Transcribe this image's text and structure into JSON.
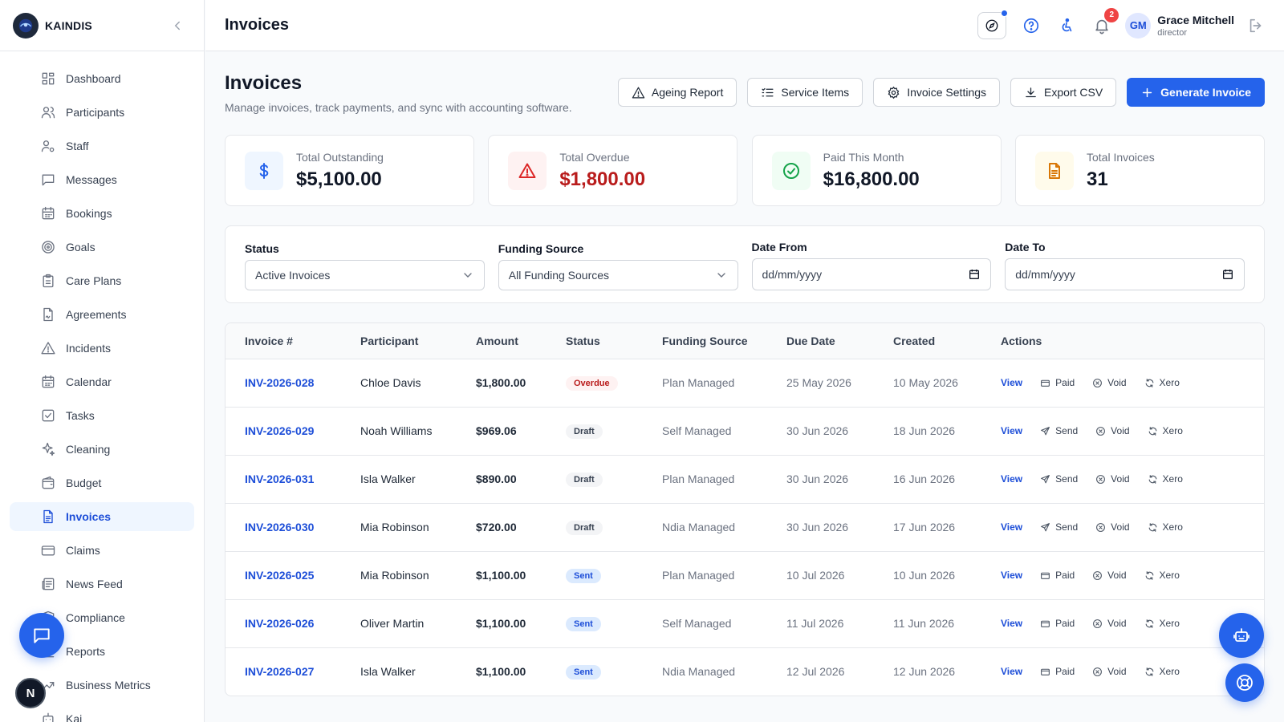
{
  "app": {
    "name": "KAINDIS"
  },
  "header": {
    "title": "Invoices",
    "notification_count": "2",
    "user": {
      "initials": "GM",
      "name": "Grace Mitchell",
      "role": "director"
    }
  },
  "sidebar": {
    "items": [
      {
        "label": "Dashboard",
        "icon": "grid-icon"
      },
      {
        "label": "Participants",
        "icon": "users-icon"
      },
      {
        "label": "Staff",
        "icon": "staff-icon"
      },
      {
        "label": "Messages",
        "icon": "message-icon"
      },
      {
        "label": "Bookings",
        "icon": "calendar-icon"
      },
      {
        "label": "Goals",
        "icon": "target-icon"
      },
      {
        "label": "Care Plans",
        "icon": "clipboard-icon"
      },
      {
        "label": "Agreements",
        "icon": "file-signature-icon"
      },
      {
        "label": "Incidents",
        "icon": "warning-icon"
      },
      {
        "label": "Calendar",
        "icon": "calendar-icon"
      },
      {
        "label": "Tasks",
        "icon": "checkbox-icon"
      },
      {
        "label": "Cleaning",
        "icon": "sparkles-icon"
      },
      {
        "label": "Budget",
        "icon": "wallet-icon"
      },
      {
        "label": "Invoices",
        "icon": "invoice-icon",
        "active": true
      },
      {
        "label": "Claims",
        "icon": "card-icon"
      },
      {
        "label": "News Feed",
        "icon": "newspaper-icon"
      },
      {
        "label": "Compliance",
        "icon": "shield-icon"
      },
      {
        "label": "Reports",
        "icon": "chart-icon"
      },
      {
        "label": "Business Metrics",
        "icon": "trending-icon"
      },
      {
        "label": "Kai",
        "icon": "bot-icon"
      }
    ],
    "n_badge": "N"
  },
  "page": {
    "title": "Invoices",
    "subtitle": "Manage invoices, track payments, and sync with accounting software.",
    "buttons": {
      "ageing": "Ageing Report",
      "service_items": "Service Items",
      "settings": "Invoice Settings",
      "export": "Export CSV",
      "generate": "Generate Invoice"
    }
  },
  "stats": [
    {
      "label": "Total Outstanding",
      "value": "$5,100.00",
      "color": "#2563eb",
      "bg": "#eff6ff"
    },
    {
      "label": "Total Overdue",
      "value": "$1,800.00",
      "color": "#dc2626",
      "bg": "#fef2f2"
    },
    {
      "label": "Paid This Month",
      "value": "$16,800.00",
      "color": "#16a34a",
      "bg": "#f0fdf4"
    },
    {
      "label": "Total Invoices",
      "value": "31",
      "color": "#d97706",
      "bg": "#fffbeb"
    }
  ],
  "filters": {
    "status": {
      "label": "Status",
      "value": "Active Invoices"
    },
    "funding": {
      "label": "Funding Source",
      "value": "All Funding Sources"
    },
    "date_from": {
      "label": "Date From",
      "value": "dd/mm/yyyy"
    },
    "date_to": {
      "label": "Date To",
      "value": "dd/mm/yyyy"
    }
  },
  "table": {
    "columns": [
      "Invoice #",
      "Participant",
      "Amount",
      "Status",
      "Funding Source",
      "Due Date",
      "Created",
      "Actions"
    ],
    "action_labels": {
      "view": "View",
      "paid": "Paid",
      "send": "Send",
      "void": "Void",
      "xero": "Xero"
    },
    "rows": [
      {
        "invoice": "INV-2026-028",
        "participant": "Chloe Davis",
        "amount": "$1,800.00",
        "status": "Overdue",
        "funding": "Plan Managed",
        "due": "25 May 2026",
        "created": "10 May 2026",
        "action": "Paid"
      },
      {
        "invoice": "INV-2026-029",
        "participant": "Noah Williams",
        "amount": "$969.06",
        "status": "Draft",
        "funding": "Self Managed",
        "due": "30 Jun 2026",
        "created": "18 Jun 2026",
        "action": "Send"
      },
      {
        "invoice": "INV-2026-031",
        "participant": "Isla Walker",
        "amount": "$890.00",
        "status": "Draft",
        "funding": "Plan Managed",
        "due": "30 Jun 2026",
        "created": "16 Jun 2026",
        "action": "Send"
      },
      {
        "invoice": "INV-2026-030",
        "participant": "Mia Robinson",
        "amount": "$720.00",
        "status": "Draft",
        "funding": "Ndia Managed",
        "due": "30 Jun 2026",
        "created": "17 Jun 2026",
        "action": "Send"
      },
      {
        "invoice": "INV-2026-025",
        "participant": "Mia Robinson",
        "amount": "$1,100.00",
        "status": "Sent",
        "funding": "Plan Managed",
        "due": "10 Jul 2026",
        "created": "10 Jun 2026",
        "action": "Paid"
      },
      {
        "invoice": "INV-2026-026",
        "participant": "Oliver Martin",
        "amount": "$1,100.00",
        "status": "Sent",
        "funding": "Self Managed",
        "due": "11 Jul 2026",
        "created": "11 Jun 2026",
        "action": "Paid"
      },
      {
        "invoice": "INV-2026-027",
        "participant": "Isla Walker",
        "amount": "$1,100.00",
        "status": "Sent",
        "funding": "Ndia Managed",
        "due": "12 Jul 2026",
        "created": "12 Jun 2026",
        "action": "Paid"
      }
    ]
  }
}
